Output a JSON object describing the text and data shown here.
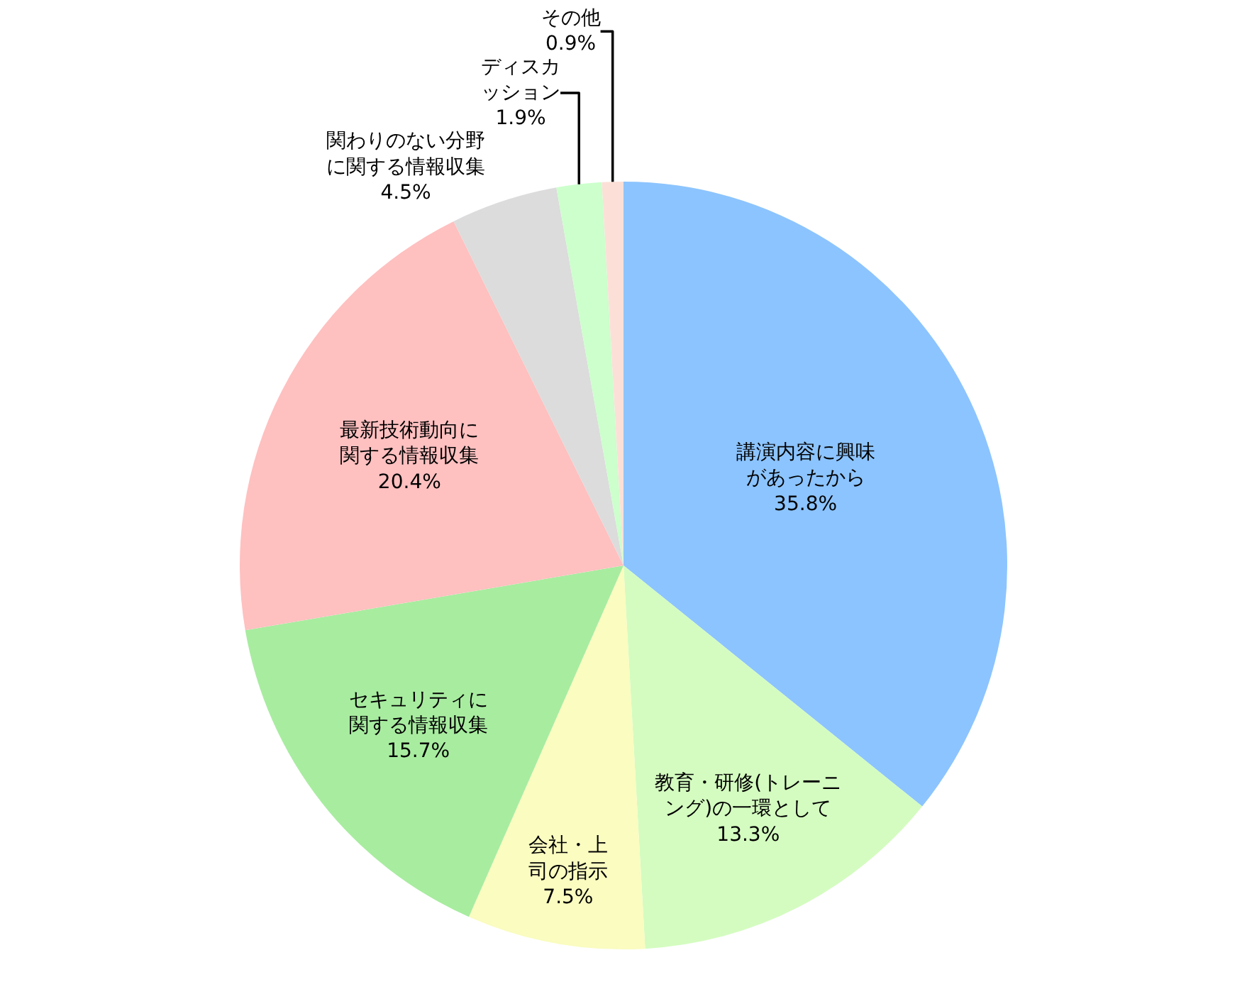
{
  "chart_data": {
    "type": "pie",
    "categories": [
      "講演内容に興味があったから",
      "教育・研修(トレーニング)の一環として",
      "会社・上司の指示",
      "セキュリティに関する情報収集",
      "最新技術動向に関する情報収集",
      "関わりのない分野に関する情報収集",
      "ディスカッション",
      "その他"
    ],
    "values": [
      35.8,
      13.3,
      7.5,
      15.7,
      20.4,
      4.5,
      1.9,
      0.9
    ],
    "value_labels": [
      "35.8%",
      "13.3%",
      "7.5%",
      "15.7%",
      "20.4%",
      "4.5%",
      "1.9%",
      "0.9%"
    ],
    "colors": [
      "#8cc4ff",
      "#d4fcc0",
      "#fafcc0",
      "#a8eca0",
      "#ffc0c0",
      "#dcdcdc",
      "#ccffcc",
      "#fce0d8"
    ],
    "legend": false
  }
}
